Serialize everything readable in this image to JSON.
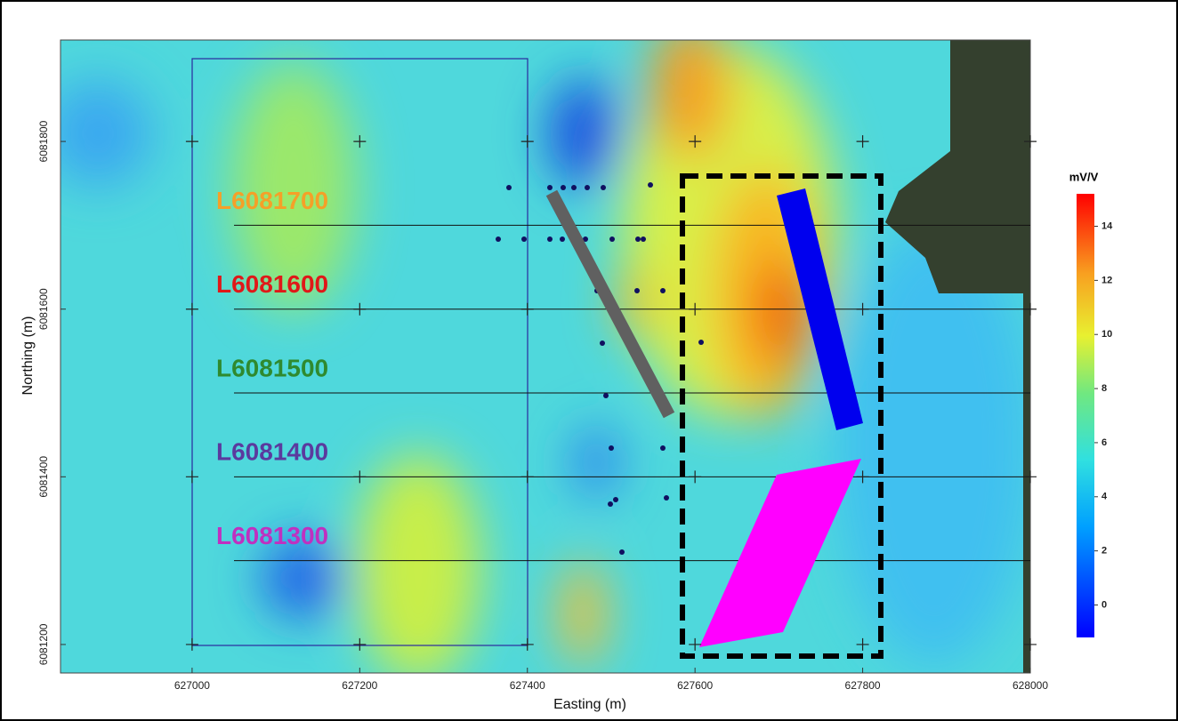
{
  "map": {
    "x_axis": {
      "label": "Easting (m)",
      "range": [
        626843,
        628000
      ],
      "ticks": [
        627000,
        627200,
        627400,
        627600,
        627800,
        628000
      ]
    },
    "y_axis": {
      "label": "Northing (m)",
      "range": [
        6081166,
        6081921
      ],
      "ticks": [
        6081200,
        6081400,
        6081600,
        6081800
      ]
    },
    "survey_lines": [
      {
        "label": "L6081700",
        "northing": 6081700,
        "color": "#f5a028"
      },
      {
        "label": "L6081600",
        "northing": 6081600,
        "color": "#e01818"
      },
      {
        "label": "L6081500",
        "northing": 6081500,
        "color": "#2f8a2f"
      },
      {
        "label": "L6081400",
        "northing": 6081400,
        "color": "#5b3a9e"
      },
      {
        "label": "L6081300",
        "northing": 6081300,
        "color": "#c030c0"
      }
    ],
    "colorbar": {
      "title": "mV/V",
      "range": [
        -1.2,
        15.2
      ],
      "ticks": [
        0,
        2,
        4,
        6,
        8,
        10,
        12,
        14
      ]
    }
  }
}
